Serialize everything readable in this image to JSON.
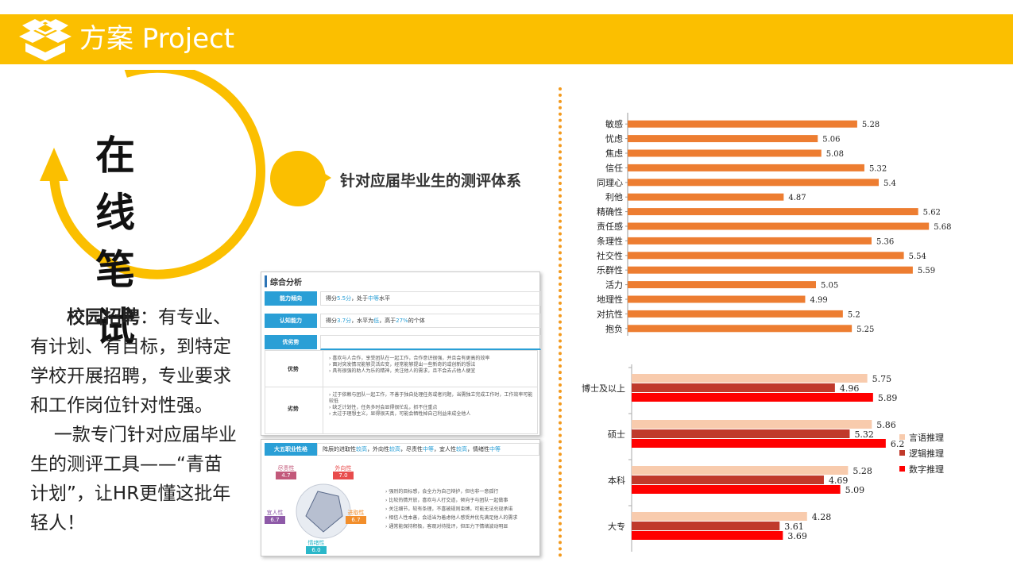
{
  "header": {
    "title": "方案 Project",
    "accent_color": "#fbbf00",
    "logo_icon": "open-box-icon"
  },
  "hero": {
    "title_line1": "在 线",
    "title_line2": "笔 试",
    "subtitle": "针对应届毕业生的测评体系"
  },
  "description": {
    "p1_bold": "校园招聘",
    "p1_rest": "：有专业、有计划、有目标，到特定学校开展招聘，专业要求和工作岗位针对性强。",
    "p2": "一款专门针对应届毕业生的测评工具——“青苗计划”，让HR更懂这批年轻人！"
  },
  "report": {
    "heading": "综合分析",
    "ability_label": "能力倾向",
    "ability_text_a": "得分",
    "ability_score": "5.5分",
    "ability_text_b": "，处于",
    "ability_level": "中等",
    "ability_text_c": "水平",
    "cognition_label": "认知能力",
    "cognition_text_a": "得分",
    "cognition_score": "3.7分",
    "cognition_text_b": "，水平为",
    "cognition_level": "低",
    "cognition_text_c": "，高于",
    "cognition_pct": "27%",
    "cognition_text_d": "的个体",
    "sw_label": "优劣势",
    "strength_label": "优势",
    "strengths": [
      "喜欢与人合作，享受团队在一起工作，合作意识很强，并且会有更高的效率",
      "面对突发情况能够灵活应变，经常能够提出一些新奇的或创新的想法",
      "具有很强的助人为乐的精神，关注他人的需求，且不会去占他人便宜"
    ],
    "weakness_label": "劣势",
    "weaknesses": [
      "过于依赖与团队一起工作，不善于独自处理任务或者问题，当需独立完成工作时，工作效率可能较低",
      "缺乏计划性，任务多时会显得很忙乱，抓不住重点",
      "太过于理想主义，显得很天真，可能会牺牲掉自己利益来成全他人"
    ]
  },
  "bigfive": {
    "label": "大五职业性格",
    "text_parts": [
      "阵辰的进取性",
      "较高",
      "，外向性",
      "较高",
      "，尽责性",
      "中等",
      "，宜人性",
      "较高",
      "，情绪性",
      "中等"
    ],
    "traits": [
      {
        "name": "尽责性",
        "value": "4.7",
        "color": "#c2597a"
      },
      {
        "name": "外向性",
        "value": "7.0",
        "color": "#e84c4c"
      },
      {
        "name": "进取性",
        "value": "6.7",
        "color": "#f28e2b"
      },
      {
        "name": "情绪性",
        "value": "6.0",
        "color": "#2ab7c9"
      },
      {
        "name": "宜人性",
        "value": "6.7",
        "color": "#8e5aa8"
      }
    ],
    "bullets": [
      "强烈的目标感，会全力为自己辩护，但也非一意孤行",
      "比较热情开放，喜欢与人打交道，倾向于与团队一起做事",
      "关注细节，较有条理，不喜被规则束缚，可能无法兑现承诺",
      "相信人性本善，会适当为着虑他人感受并优先满足他人的需求",
      "通常能保持积极，客观对待批评，但压力下情绪波动明显"
    ]
  },
  "chart_data": [
    {
      "type": "bar",
      "orientation": "horizontal",
      "categories": [
        "敏感",
        "忧虑",
        "焦虑",
        "信任",
        "同理心",
        "利他",
        "精确性",
        "责任感",
        "条理性",
        "社交性",
        "乐群性",
        "活力",
        "地理性",
        "对抗性",
        "抱负"
      ],
      "values": [
        5.28,
        5.06,
        5.08,
        5.32,
        5.4,
        4.87,
        5.62,
        5.68,
        5.36,
        5.54,
        5.59,
        5.05,
        4.99,
        5.2,
        5.25
      ],
      "value_labels": [
        "5.28",
        "5.06",
        "5.08",
        "5.32",
        "5.4",
        "4.87",
        "5.62",
        "5.68",
        "5.36",
        "5.54",
        "5.59",
        "5.05",
        "4.99",
        "5.2",
        "5.25"
      ],
      "color": "#ed7d31",
      "xlim": [
        4,
        5.75
      ]
    },
    {
      "type": "bar",
      "orientation": "horizontal",
      "categories": [
        "博士及以上",
        "硕士",
        "本科",
        "大专"
      ],
      "series": [
        {
          "name": "言语推理",
          "values": [
            5.75,
            5.86,
            5.28,
            4.28
          ],
          "labels": [
            "5.75",
            "5.86",
            "5.28",
            "4.28"
          ],
          "color": "#f8cbad"
        },
        {
          "name": "逻辑推理",
          "values": [
            4.96,
            5.32,
            4.69,
            3.61
          ],
          "labels": [
            "4.96",
            "5.32",
            "4.69",
            "3.61"
          ],
          "color": "#c0392b"
        },
        {
          "name": "数字推理",
          "values": [
            5.89,
            6.2,
            5.09,
            3.69
          ],
          "labels": [
            "5.89",
            "6.2",
            "5.09",
            "3.69"
          ],
          "color": "#ff0000"
        }
      ],
      "xlim": [
        0,
        6.3
      ],
      "legend": "right"
    }
  ]
}
